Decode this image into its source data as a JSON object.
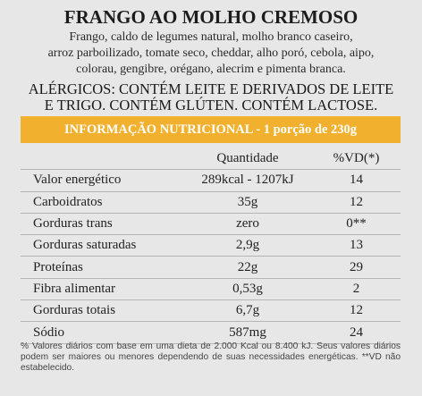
{
  "title": "FRANGO AO MOLHO CREMOSO",
  "ingredients": [
    "Frango, caldo de legumes natural, molho branco caseiro,",
    "arroz parboilizado, tomate seco, cheddar, alho poró, cebola, aipo,",
    "colorau, gengibre, orégano, alecrim e pimenta branca."
  ],
  "allergens": [
    "ALÉRGICOS: CONTÉM LEITE E DERIVADOS DE LEITE",
    "E TRIGO. CONTÉM GLÚTEN. CONTÉM LACTOSE."
  ],
  "nutrition_header": "INFORMAÇÃO NUTRICIONAL - 1 porção de 230g",
  "columns": {
    "quantity": "Quantidade",
    "dv": "%VD(*)"
  },
  "rows": [
    {
      "name": "Valor energético",
      "qty": "289kcal - 1207kJ",
      "dv": "14"
    },
    {
      "name": "Carboidratos",
      "qty": "35g",
      "dv": "12"
    },
    {
      "name": "Gorduras trans",
      "qty": "zero",
      "dv": "0**"
    },
    {
      "name": "Gorduras saturadas",
      "qty": "2,9g",
      "dv": "13"
    },
    {
      "name": "Proteínas",
      "qty": "22g",
      "dv": "29"
    },
    {
      "name": "Fibra alimentar",
      "qty": "0,53g",
      "dv": "2"
    },
    {
      "name": "Gorduras totais",
      "qty": "6,7g",
      "dv": "12"
    },
    {
      "name": "Sódio",
      "qty": "587mg",
      "dv": "24"
    }
  ],
  "footnote": "% Valores diários com base em uma dieta de 2.000 Kcal ou 8.400 kJ. Seus valores diários podem ser maiores ou menores dependendo de suas necessidades energéticas. **VD não estabelecido.",
  "colors": {
    "band": "#f1b12e",
    "background": "#e7e7e7",
    "divider": "#b5b5b5"
  }
}
